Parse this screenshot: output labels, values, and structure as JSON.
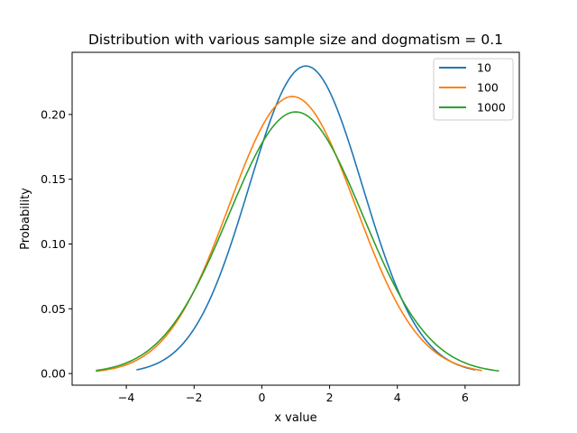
{
  "chart_data": {
    "type": "line",
    "title": "Distribution with various sample size and dogmatism = 0.1",
    "xlabel": "x value",
    "ylabel": "Probability",
    "xlim": [
      -5.6,
      7.6
    ],
    "ylim": [
      -0.009,
      0.248
    ],
    "xticks": [
      {
        "value": -4,
        "label": "−4"
      },
      {
        "value": -2,
        "label": "−2"
      },
      {
        "value": 0,
        "label": "0"
      },
      {
        "value": 2,
        "label": "2"
      },
      {
        "value": 4,
        "label": "4"
      },
      {
        "value": 6,
        "label": "6"
      }
    ],
    "yticks": [
      {
        "value": 0.0,
        "label": "0.00"
      },
      {
        "value": 0.05,
        "label": "0.05"
      },
      {
        "value": 0.1,
        "label": "0.10"
      },
      {
        "value": 0.15,
        "label": "0.15"
      },
      {
        "value": 0.2,
        "label": "0.20"
      }
    ],
    "grid": false,
    "legend_position": "top-right",
    "series": [
      {
        "name": "10",
        "color": "#1f77b4",
        "mean": 1.3,
        "sd": 1.68,
        "x_range": [
          -3.7,
          6.3
        ]
      },
      {
        "name": "100",
        "color": "#ff7f0e",
        "mean": 0.9,
        "sd": 1.865,
        "x_range": [
          -4.9,
          6.5
        ]
      },
      {
        "name": "1000",
        "color": "#2ca02c",
        "mean": 1.0,
        "sd": 1.975,
        "x_range": [
          -4.9,
          7.0
        ]
      }
    ]
  }
}
